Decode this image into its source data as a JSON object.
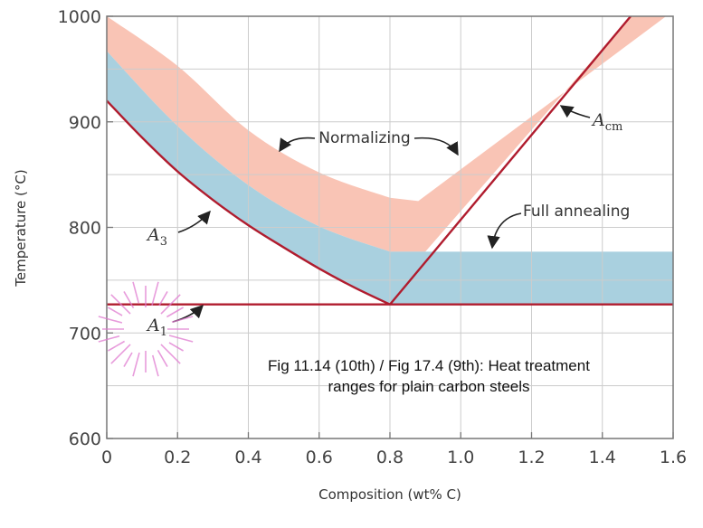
{
  "chart_data": {
    "type": "line",
    "title": "",
    "xlabel": "Composition (wt% C)",
    "ylabel": "Temperature (°C)",
    "xlim": [
      0,
      1.6
    ],
    "ylim": [
      600,
      1000
    ],
    "x_ticks": [
      "0",
      "0.2",
      "0.4",
      "0.6",
      "0.8",
      "1.0",
      "1.2",
      "1.4",
      "1.6"
    ],
    "y_ticks": [
      "600",
      "700",
      "800",
      "900",
      "1000"
    ],
    "grid": true,
    "colors": {
      "line": "#b01c2e",
      "full_annealing": "#a9d0df",
      "normalizing": "#f9c4b5",
      "grid": "#cccccc",
      "highlight": "#e07ad0"
    },
    "series": [
      {
        "name": "A3",
        "label_main": "A",
        "label_sub": "3",
        "x": [
          0,
          0.1,
          0.2,
          0.3,
          0.4,
          0.5,
          0.6,
          0.7,
          0.8
        ],
        "y": [
          920,
          885,
          853,
          826,
          802,
          781,
          761,
          743,
          727
        ]
      },
      {
        "name": "A1",
        "label_main": "A",
        "label_sub": "1",
        "x": [
          0,
          1.6
        ],
        "y": [
          727,
          727
        ]
      },
      {
        "name": "Acm",
        "label_main": "A",
        "label_sub": "cm",
        "x": [
          0.8,
          1.48
        ],
        "y": [
          727,
          1000
        ]
      }
    ],
    "regions": [
      {
        "name": "Full annealing",
        "upper": {
          "x": [
            0,
            0.2,
            0.4,
            0.6,
            0.8,
            0.9,
            1.6
          ],
          "y": [
            967,
            896,
            840,
            801,
            777,
            777,
            777
          ]
        }
      },
      {
        "name": "Normalizing",
        "upper": {
          "x": [
            0,
            0.2,
            0.4,
            0.6,
            0.8,
            0.88,
            1.58
          ],
          "y": [
            1000,
            953,
            892,
            852,
            828,
            825,
            1000
          ]
        }
      }
    ],
    "annotations": [
      {
        "text": "Normalizing"
      },
      {
        "text": "Full annealing"
      }
    ],
    "caption": [
      "Fig 11.14 (10th) / Fig 17.4 (9th): Heat treatment",
      "ranges for plain carbon steels"
    ]
  }
}
